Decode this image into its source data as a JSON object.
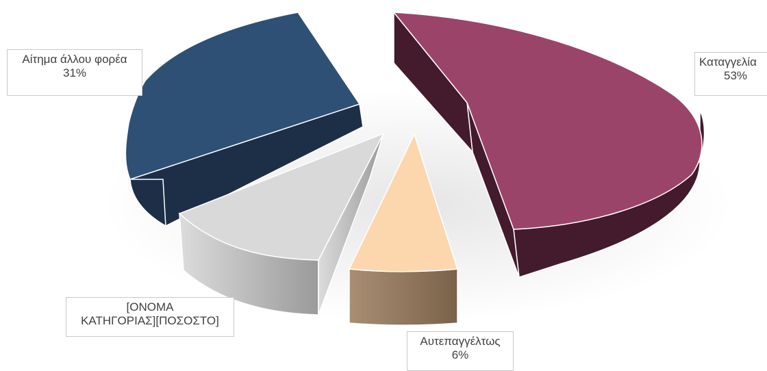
{
  "chart_data": {
    "type": "pie",
    "title": "",
    "slices": [
      {
        "label": "Καταγγελία",
        "value": 53,
        "pct_label": "53%",
        "color": "#9b446a",
        "side_color": "#431b2c"
      },
      {
        "label": "Αυτεπαγγέλτως",
        "value": 6,
        "pct_label": "6%",
        "color": "#fcd7ad",
        "side_color": "#8a7056"
      },
      {
        "label": "[ΟΝΟΜΑ ΚΑΤΗΓΟΡΙΑΣ]",
        "value": 10,
        "pct_label": "[ΠΟΣΟΣΤΟ]",
        "color": "#d9d9d9",
        "side_color": "#a6a6a6"
      },
      {
        "label": "Αίτημα άλλου φορέα",
        "value": 31,
        "pct_label": "31%",
        "color": "#2e5075",
        "side_color": "#1c2f47"
      }
    ],
    "labels": {
      "complaint": {
        "name": "Καταγγελία",
        "pct": "53%"
      },
      "ex_officio": {
        "name": "Αυτεπαγγέλτως",
        "pct": "6%"
      },
      "placeholder": {
        "line1": "[ΟΝΟΜΑ",
        "line2": "ΚΑΤΗΓΟΡΙΑΣ][ΠΟΣΟΣΤΟ]"
      },
      "other_agency": {
        "name": "Αίτημα άλλου φορέα",
        "pct": "31%"
      }
    },
    "exploded": true,
    "three_d": true
  }
}
